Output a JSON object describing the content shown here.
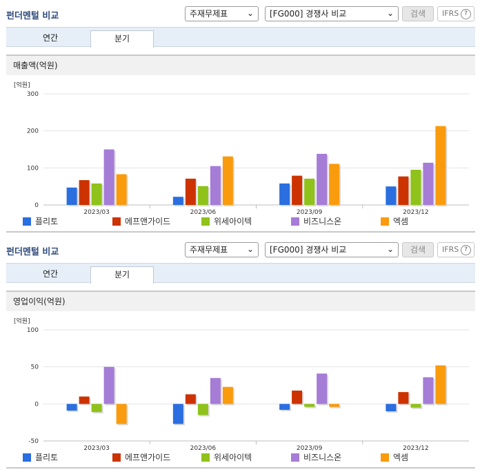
{
  "section_title": "펀더멘털 비교",
  "controls": {
    "select_type": "주재무제표",
    "select_group": "[FG000] 경쟁사 비교",
    "search_label": "검색",
    "ifrs_label": "IFRS",
    "help_label": "?"
  },
  "tabs": [
    "연간",
    "분기"
  ],
  "active_tab": "분기",
  "colors": {
    "series": [
      "#2a6ee0",
      "#cc3300",
      "#8fc21a",
      "#a57cd6",
      "#f99b0d"
    ],
    "tab_bar": "#e6eef7",
    "title_text": "#2e4a7a"
  },
  "chart_data": [
    {
      "type": "bar",
      "title": "매출액(억원)",
      "ylabel": "[억원]",
      "categories": [
        "2023/03",
        "2023/06",
        "2023/09",
        "2023/12"
      ],
      "ylim": [
        0,
        300
      ],
      "yticks": [
        0,
        100,
        200,
        300
      ],
      "grid": true,
      "legend": "bottom",
      "series": [
        {
          "name": "플리토",
          "values": [
            47,
            22,
            58,
            50
          ]
        },
        {
          "name": "에프앤가이드",
          "values": [
            67,
            71,
            79,
            77
          ]
        },
        {
          "name": "위세아이텍",
          "values": [
            58,
            51,
            71,
            95
          ]
        },
        {
          "name": "비즈니스온",
          "values": [
            150,
            105,
            138,
            114
          ]
        },
        {
          "name": "엑셈",
          "values": [
            83,
            131,
            111,
            213
          ]
        }
      ]
    },
    {
      "type": "bar",
      "title": "영업이익(억원)",
      "ylabel": "[억원]",
      "categories": [
        "2023/03",
        "2023/06",
        "2023/09",
        "2023/12"
      ],
      "ylim": [
        -50,
        100
      ],
      "yticks": [
        -50,
        0,
        50,
        100
      ],
      "grid": true,
      "legend": "bottom",
      "series": [
        {
          "name": "플리토",
          "values": [
            -9,
            -27,
            -8,
            -10
          ]
        },
        {
          "name": "에프앤가이드",
          "values": [
            10,
            13,
            18,
            16
          ]
        },
        {
          "name": "위세아이텍",
          "values": [
            -11,
            -15,
            -4,
            -5
          ]
        },
        {
          "name": "비즈니스온",
          "values": [
            50,
            35,
            41,
            36
          ]
        },
        {
          "name": "엑셈",
          "values": [
            -27,
            23,
            -4,
            52
          ]
        }
      ]
    }
  ]
}
